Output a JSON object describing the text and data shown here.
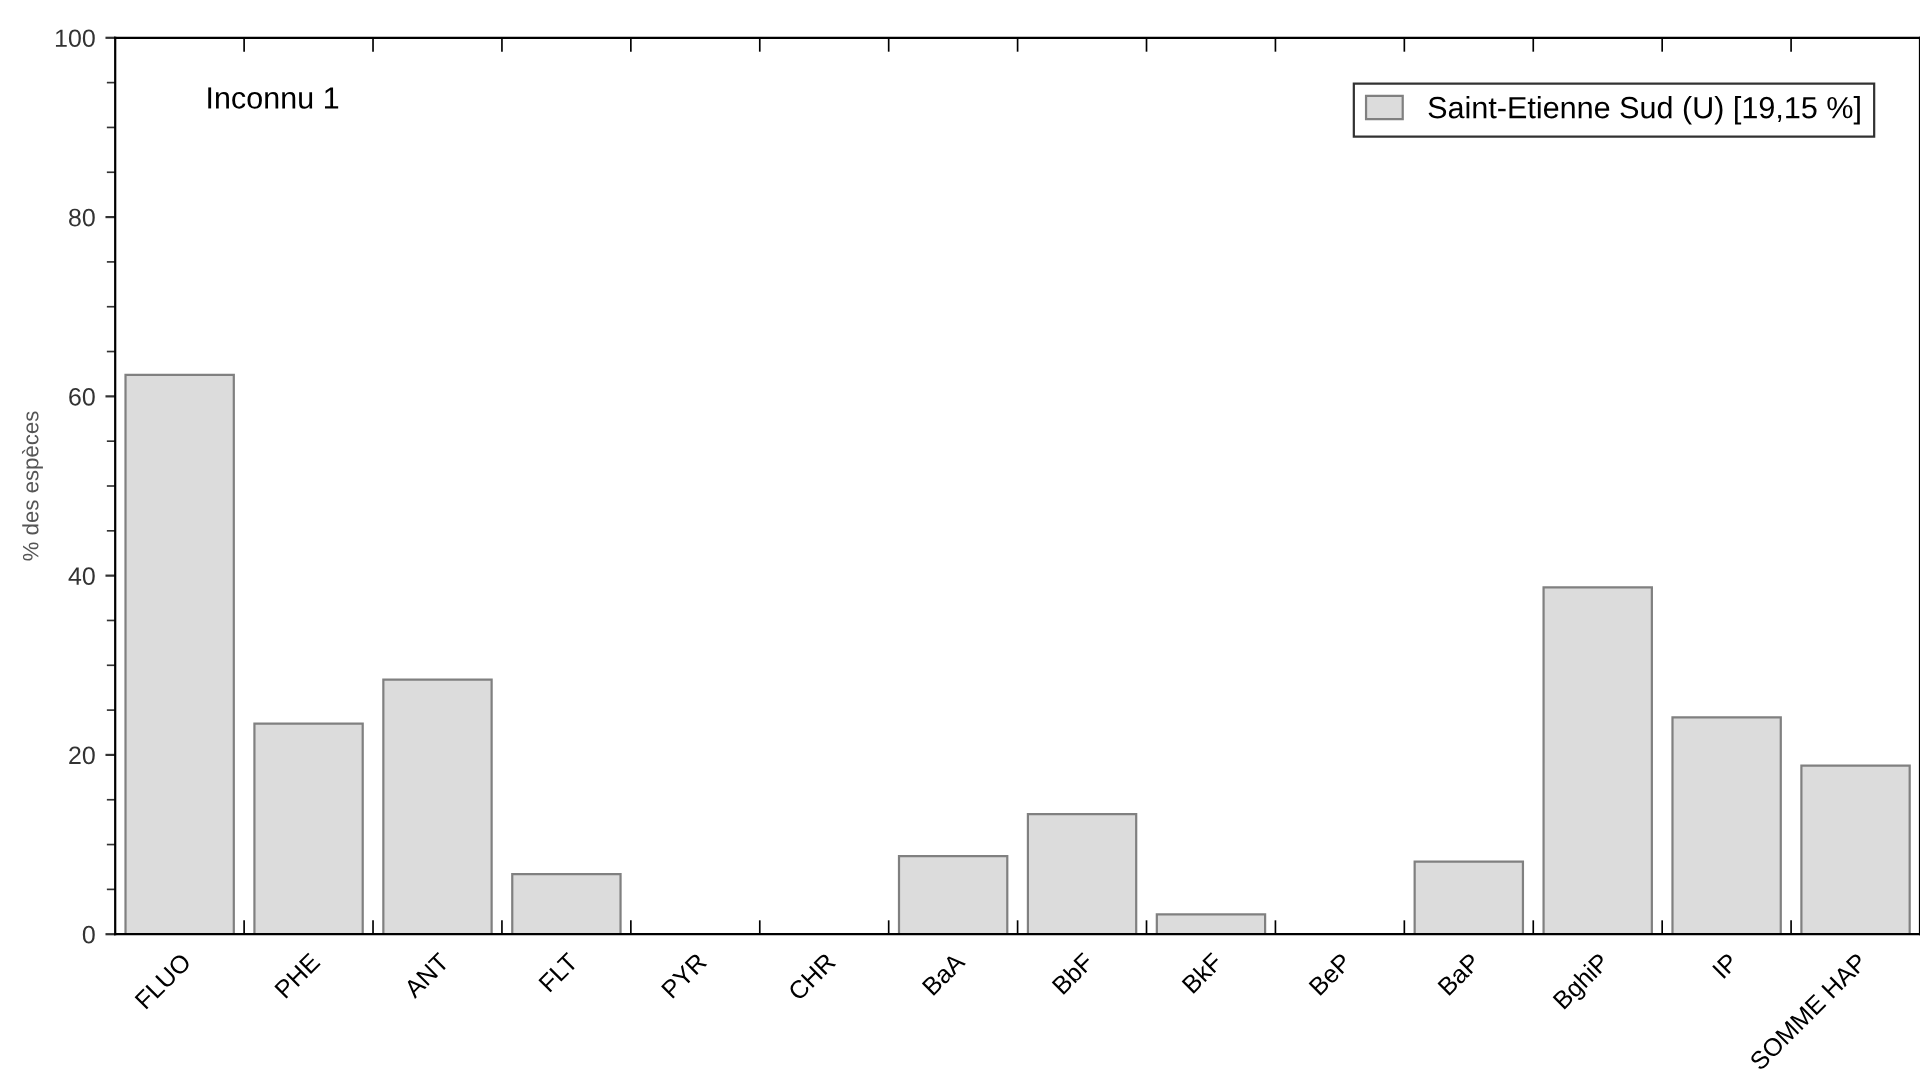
{
  "chart_data": {
    "type": "bar",
    "ylabel": "% des espèces",
    "annotations": [
      "Inconnu 1"
    ],
    "categories": [
      "FLUO",
      "PHE",
      "ANT",
      "FLT",
      "PYR",
      "CHR",
      "BaA",
      "BbF",
      "BkF",
      "BeP",
      "BaP",
      "BghiP",
      "IP",
      "SOMME HAP"
    ],
    "series": [
      {
        "name": "Saint-Etienne Sud (U) [19,15 %]",
        "color": "#dcdcdc",
        "values": [
          62.4,
          23.5,
          28.4,
          6.7,
          0,
          0,
          8.7,
          13.4,
          2.2,
          0,
          8.1,
          38.7,
          24.2,
          18.8
        ]
      }
    ],
    "ylim": [
      0,
      100
    ],
    "yticks": [
      0,
      20,
      40,
      60,
      80,
      100
    ],
    "grid": false,
    "legend": "top right"
  }
}
